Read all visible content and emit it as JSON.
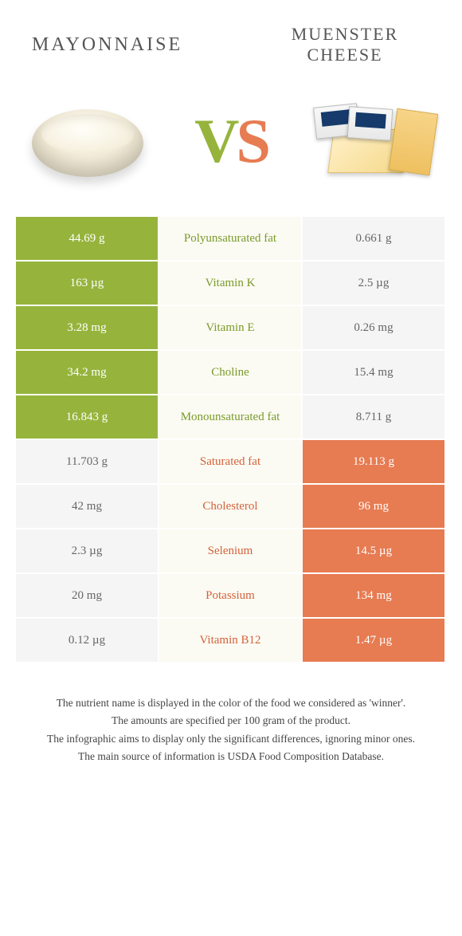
{
  "header": {
    "left_title": "MAYONNAISE",
    "right_title": "MUENSTER CHEESE",
    "vs_v": "V",
    "vs_s": "S"
  },
  "colors": {
    "green": "#96b43c",
    "orange": "#e77b52",
    "grey": "#f5f5f5",
    "mid_bg": "#fbfbf3"
  },
  "rows": [
    {
      "left": "44.69 g",
      "left_cls": "green",
      "mid": "Polyunsaturated fat",
      "mid_cls": "gtext",
      "right": "0.661 g",
      "right_cls": "grey"
    },
    {
      "left": "163 µg",
      "left_cls": "green",
      "mid": "Vitamin K",
      "mid_cls": "gtext",
      "right": "2.5 µg",
      "right_cls": "grey"
    },
    {
      "left": "3.28 mg",
      "left_cls": "green",
      "mid": "Vitamin E",
      "mid_cls": "gtext",
      "right": "0.26 mg",
      "right_cls": "grey"
    },
    {
      "left": "34.2 mg",
      "left_cls": "green",
      "mid": "Choline",
      "mid_cls": "gtext",
      "right": "15.4 mg",
      "right_cls": "grey"
    },
    {
      "left": "16.843 g",
      "left_cls": "green",
      "mid": "Monounsaturated fat",
      "mid_cls": "gtext",
      "right": "8.711 g",
      "right_cls": "grey"
    },
    {
      "left": "11.703 g",
      "left_cls": "grey",
      "mid": "Saturated fat",
      "mid_cls": "otext",
      "right": "19.113 g",
      "right_cls": "orange"
    },
    {
      "left": "42 mg",
      "left_cls": "grey",
      "mid": "Cholesterol",
      "mid_cls": "otext",
      "right": "96 mg",
      "right_cls": "orange"
    },
    {
      "left": "2.3 µg",
      "left_cls": "grey",
      "mid": "Selenium",
      "mid_cls": "otext",
      "right": "14.5 µg",
      "right_cls": "orange"
    },
    {
      "left": "20 mg",
      "left_cls": "grey",
      "mid": "Potassium",
      "mid_cls": "otext",
      "right": "134 mg",
      "right_cls": "orange"
    },
    {
      "left": "0.12 µg",
      "left_cls": "grey",
      "mid": "Vitamin B12",
      "mid_cls": "otext",
      "right": "1.47 µg",
      "right_cls": "orange"
    }
  ],
  "footer": {
    "l1": "The nutrient name is displayed in the color of the food we considered as 'winner'.",
    "l2": "The amounts are specified per 100 gram of the product.",
    "l3": "The infographic aims to display only the significant differences, ignoring minor ones.",
    "l4": "The main source of information is USDA Food Composition Database."
  }
}
